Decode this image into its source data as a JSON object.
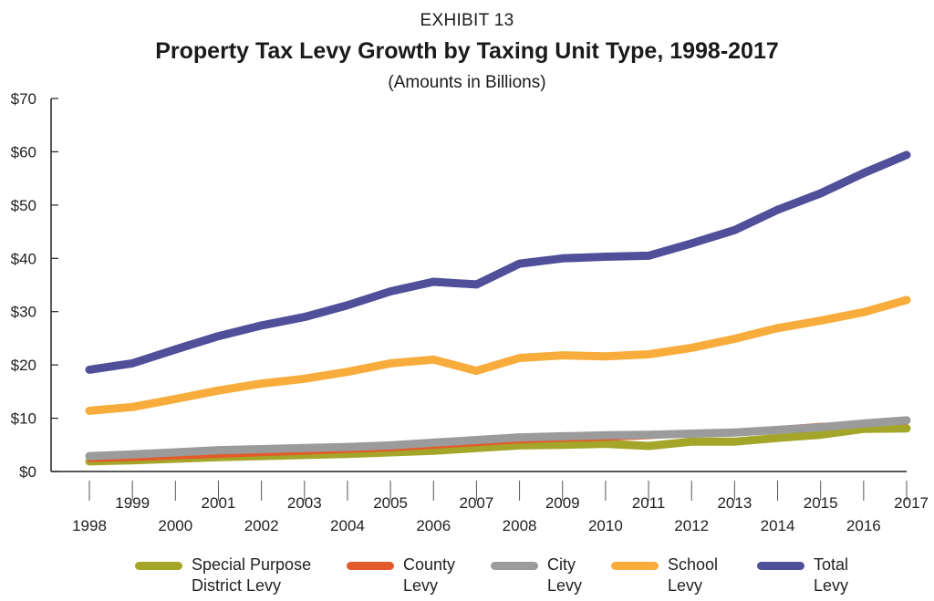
{
  "header": {
    "eyebrow": "EXHIBIT 13",
    "title": "Property Tax Levy Growth by Taxing Unit Type, 1998-2017",
    "subtitle": "(Amounts in Billions)"
  },
  "chart_data": {
    "type": "line",
    "x": [
      1998,
      1999,
      2000,
      2001,
      2002,
      2003,
      2004,
      2005,
      2006,
      2007,
      2008,
      2009,
      2010,
      2011,
      2012,
      2013,
      2014,
      2015,
      2016,
      2017
    ],
    "x_tick_labels": [
      "1998",
      "1999",
      "2000",
      "2001",
      "2002",
      "2003",
      "2004",
      "2005",
      "2006",
      "2007",
      "2008",
      "2009",
      "2010",
      "2011",
      "2012",
      "2013",
      "2014",
      "2015",
      "2016",
      "2017"
    ],
    "ylim": [
      0,
      70
    ],
    "y_ticks": [
      0,
      10,
      20,
      30,
      40,
      50,
      60,
      70
    ],
    "y_tick_labels": [
      "$0",
      "$10",
      "$20",
      "$30",
      "$40",
      "$50",
      "$60",
      "$70"
    ],
    "grid": false,
    "legend_position": "bottom",
    "series": [
      {
        "name": "Special Purpose\nDistrict Levy",
        "color": "#a3a629",
        "values": [
          1.9,
          2.1,
          2.4,
          2.7,
          2.9,
          3.1,
          3.3,
          3.6,
          3.9,
          4.4,
          4.9,
          5.0,
          5.2,
          4.8,
          5.6,
          5.6,
          6.3,
          6.9,
          8.0,
          8.1
        ]
      },
      {
        "name": "County\nLevy",
        "color": "#e45a2a",
        "values": [
          2.1,
          2.3,
          2.6,
          2.9,
          3.2,
          3.5,
          3.8,
          4.1,
          4.6,
          5.1,
          5.6,
          5.9,
          6.1,
          6.4,
          6.9,
          7.6,
          8.2,
          8.8,
          9.0,
          9.1
        ]
      },
      {
        "name": "City\nLevy",
        "color": "#9b9b9b",
        "values": [
          2.9,
          3.2,
          3.6,
          4.0,
          4.2,
          4.4,
          4.6,
          4.9,
          5.4,
          5.9,
          6.4,
          6.6,
          6.8,
          6.9,
          7.1,
          7.3,
          7.8,
          8.3,
          9.0,
          9.6
        ]
      },
      {
        "name": "School\nLevy",
        "color": "#f7ac3b",
        "values": [
          11.4,
          12.1,
          13.6,
          15.2,
          16.5,
          17.4,
          18.7,
          20.3,
          21.0,
          18.9,
          21.3,
          21.8,
          21.6,
          22.0,
          23.2,
          24.9,
          26.9,
          28.3,
          29.9,
          32.2
        ]
      },
      {
        "name": "Total\nLevy",
        "color": "#4f4f9a",
        "values": [
          19.1,
          20.3,
          22.9,
          25.4,
          27.4,
          29.0,
          31.2,
          33.8,
          35.6,
          35.1,
          39.0,
          40.0,
          40.3,
          40.5,
          42.8,
          45.3,
          49.1,
          52.2,
          56.0,
          59.4
        ]
      }
    ]
  }
}
